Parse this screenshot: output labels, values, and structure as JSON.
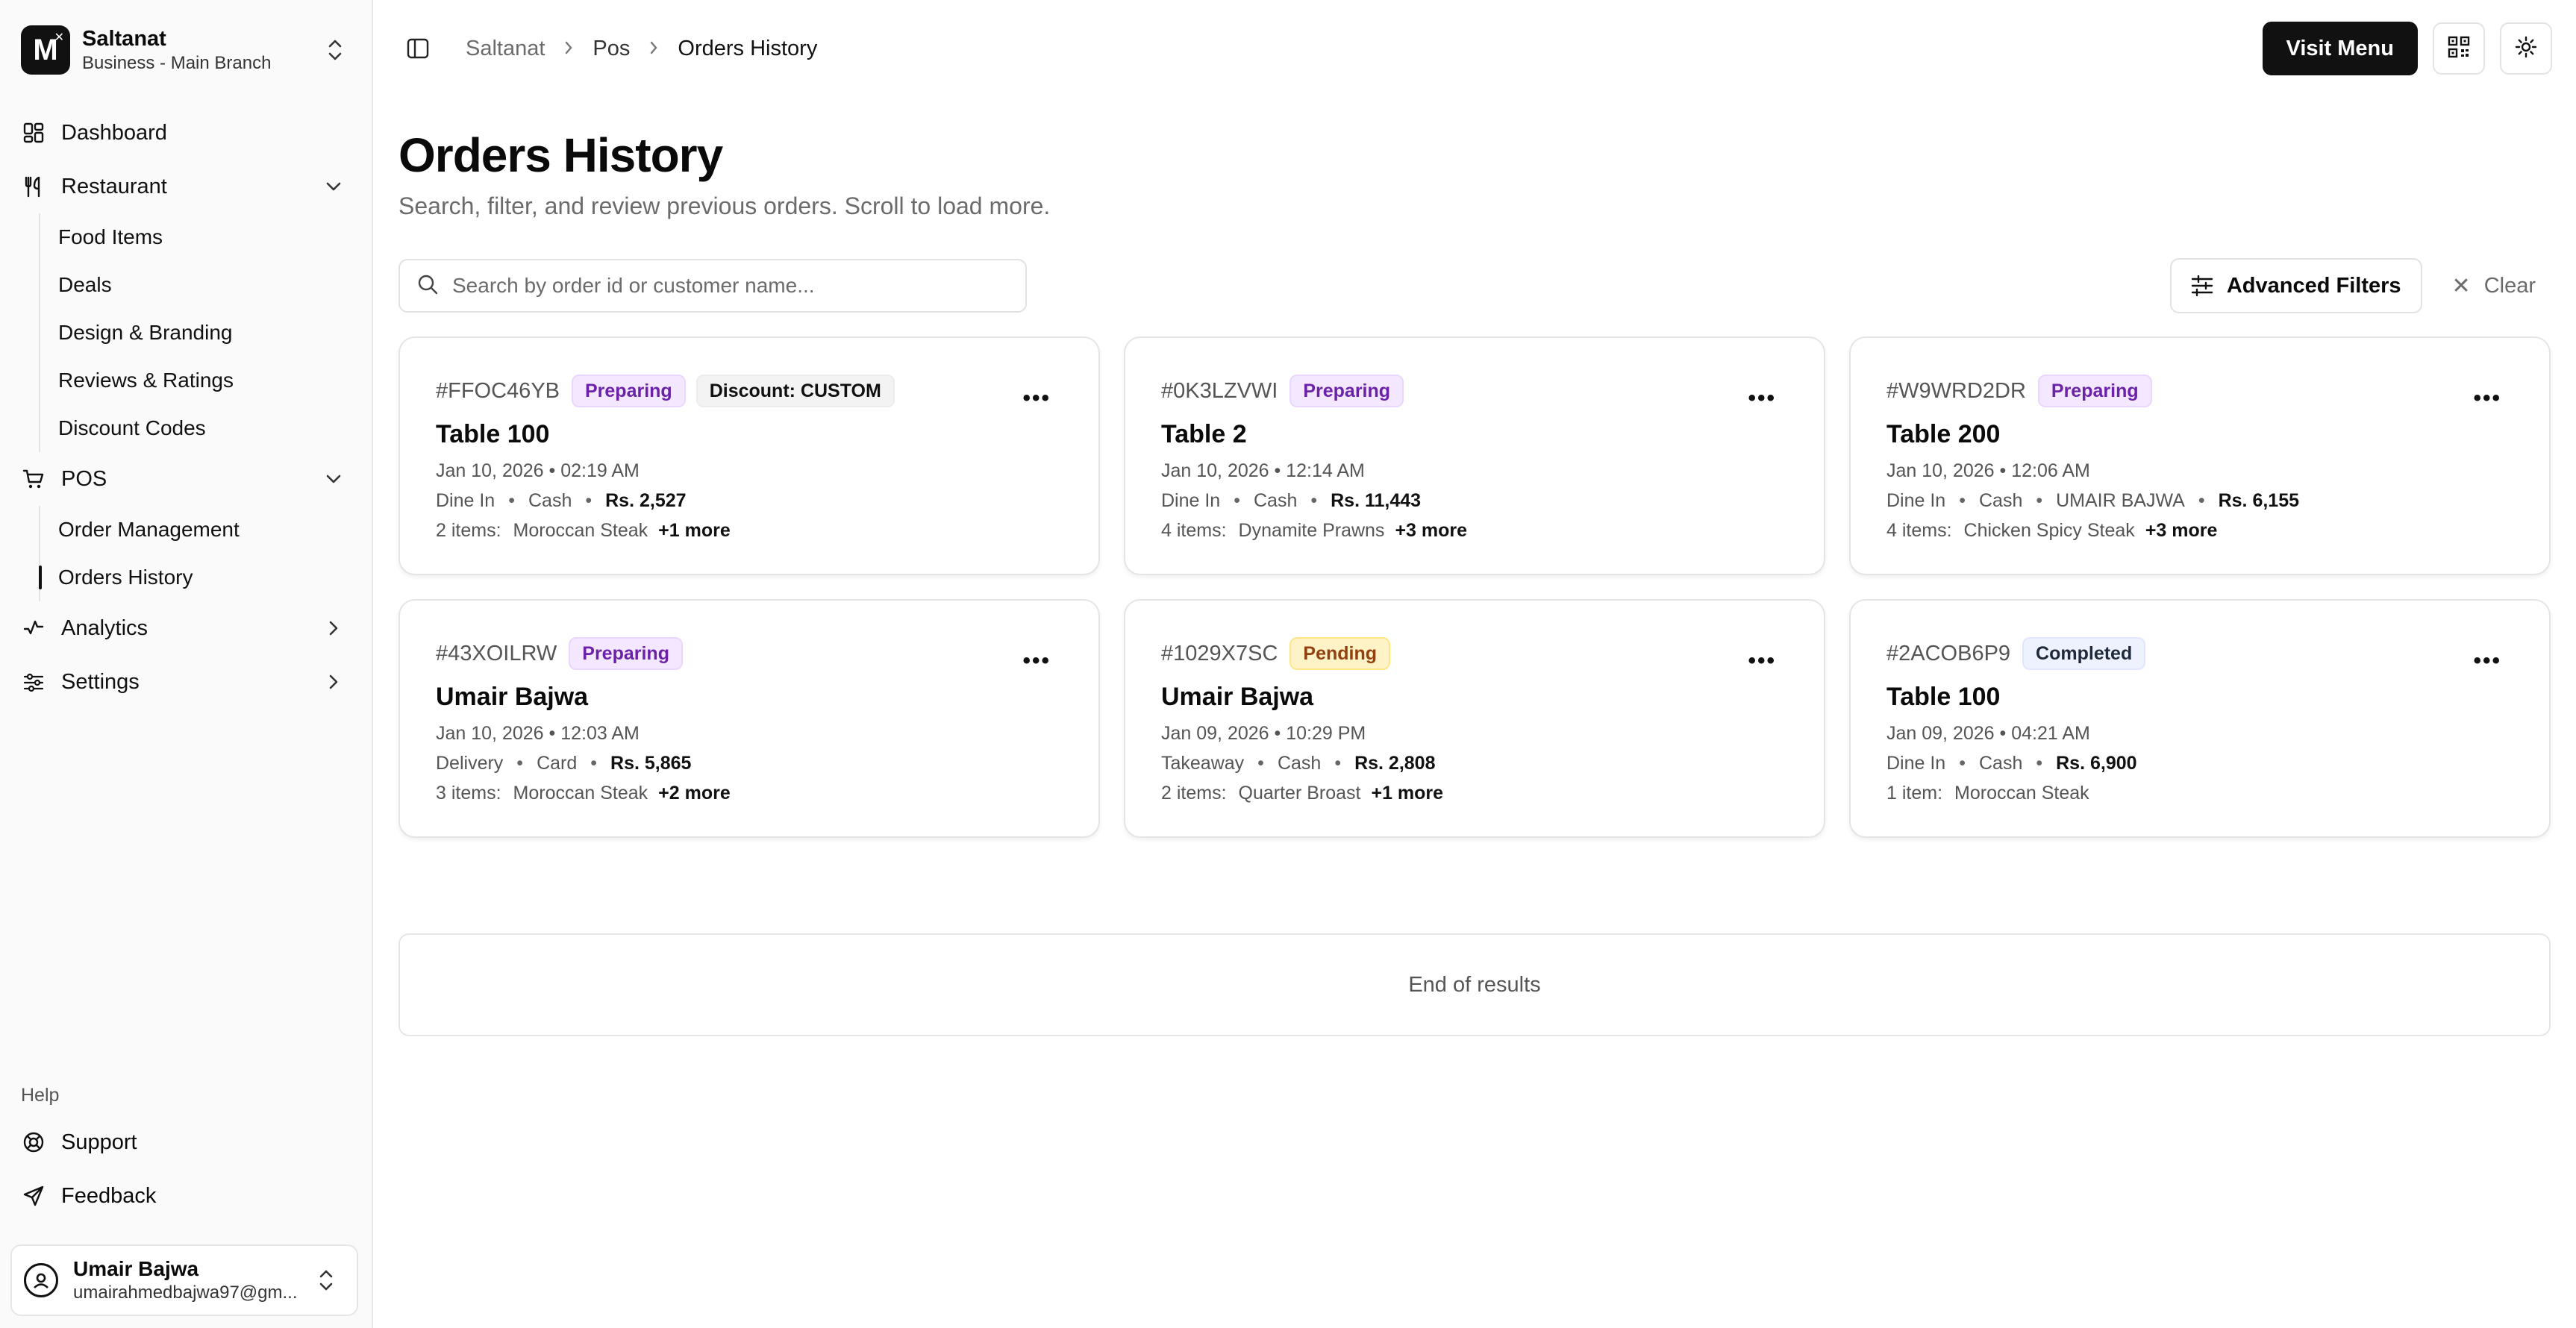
{
  "brand": {
    "name": "Saltanat",
    "branch": "Business - Main Branch",
    "logo_letter": "M"
  },
  "sidebar": {
    "dashboard": "Dashboard",
    "restaurant": {
      "label": "Restaurant",
      "items": [
        "Food Items",
        "Deals",
        "Design & Branding",
        "Reviews & Ratings",
        "Discount Codes"
      ]
    },
    "pos": {
      "label": "POS",
      "items": [
        "Order Management",
        "Orders History"
      ],
      "active": "Orders History"
    },
    "analytics": "Analytics",
    "settings": "Settings",
    "help_label": "Help",
    "support": "Support",
    "feedback": "Feedback"
  },
  "user": {
    "name": "Umair Bajwa",
    "email": "umairahmedbajwa97@gm..."
  },
  "breadcrumb": [
    "Saltanat",
    "Pos",
    "Orders History"
  ],
  "topbar": {
    "visit_menu": "Visit Menu"
  },
  "page": {
    "title": "Orders History",
    "subtitle": "Search, filter, and review previous orders. Scroll to load more."
  },
  "search": {
    "placeholder": "Search by order id or customer name...",
    "value": ""
  },
  "filters": {
    "advanced": "Advanced Filters",
    "clear": "Clear"
  },
  "orders": [
    {
      "id": "#FFOC46YB",
      "status": "Preparing",
      "status_kind": "preparing",
      "discount": "Discount: CUSTOM",
      "title": "Table 100",
      "date": "Jan 10, 2026 • 02:19 AM",
      "type": "Dine In",
      "payment": "Cash",
      "customer": "",
      "amount": "Rs. 2,527",
      "items_count": "2 items:",
      "first_item": "Moroccan Steak",
      "more": "+1 more"
    },
    {
      "id": "#0K3LZVWI",
      "status": "Preparing",
      "status_kind": "preparing",
      "discount": "",
      "title": "Table 2",
      "date": "Jan 10, 2026 • 12:14 AM",
      "type": "Dine In",
      "payment": "Cash",
      "customer": "",
      "amount": "Rs. 11,443",
      "items_count": "4 items:",
      "first_item": "Dynamite Prawns",
      "more": "+3 more"
    },
    {
      "id": "#W9WRD2DR",
      "status": "Preparing",
      "status_kind": "preparing",
      "discount": "",
      "title": "Table 200",
      "date": "Jan 10, 2026 • 12:06 AM",
      "type": "Dine In",
      "payment": "Cash",
      "customer": "UMAIR BAJWA",
      "amount": "Rs. 6,155",
      "items_count": "4 items:",
      "first_item": "Chicken Spicy Steak",
      "more": "+3 more"
    },
    {
      "id": "#43XOILRW",
      "status": "Preparing",
      "status_kind": "preparing",
      "discount": "",
      "title": "Umair Bajwa",
      "date": "Jan 10, 2026 • 12:03 AM",
      "type": "Delivery",
      "payment": "Card",
      "customer": "",
      "amount": "Rs. 5,865",
      "items_count": "3 items:",
      "first_item": "Moroccan Steak",
      "more": "+2 more"
    },
    {
      "id": "#1029X7SC",
      "status": "Pending",
      "status_kind": "pending",
      "discount": "",
      "title": "Umair Bajwa",
      "date": "Jan 09, 2026 • 10:29 PM",
      "type": "Takeaway",
      "payment": "Cash",
      "customer": "",
      "amount": "Rs. 2,808",
      "items_count": "2 items:",
      "first_item": "Quarter Broast",
      "more": "+1 more"
    },
    {
      "id": "#2ACOB6P9",
      "status": "Completed",
      "status_kind": "completed",
      "discount": "",
      "title": "Table 100",
      "date": "Jan 09, 2026 • 04:21 AM",
      "type": "Dine In",
      "payment": "Cash",
      "customer": "",
      "amount": "Rs. 6,900",
      "items_count": "1 item:",
      "first_item": "Moroccan Steak",
      "more": ""
    }
  ],
  "end_text": "End of results",
  "icons": {
    "dashboard": "dashboard-icon",
    "restaurant": "utensils-icon",
    "pos": "cart-icon",
    "analytics": "analytics-icon",
    "settings": "sliders-icon",
    "support": "lifebuoy-icon",
    "feedback": "send-icon"
  }
}
